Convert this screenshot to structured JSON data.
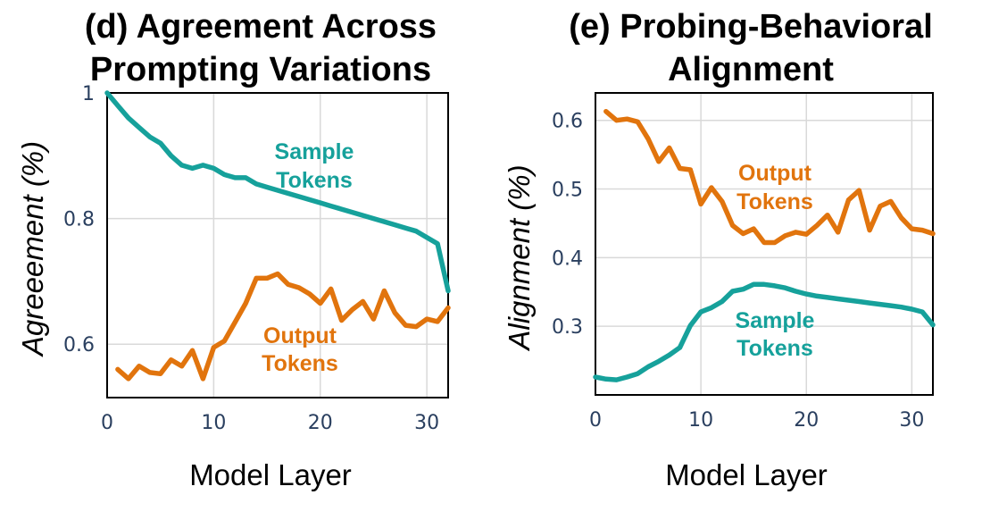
{
  "chart_data": [
    {
      "type": "line",
      "title_lines": [
        "(d) Agreement Across",
        "Prompting Variations"
      ],
      "xlabel": "Model Layer",
      "ylabel": "Agreeement (%)",
      "xlim": [
        0,
        32
      ],
      "ylim": [
        0.515,
        1.0
      ],
      "xticks": [
        0,
        10,
        20,
        30
      ],
      "yticks": [
        0.6,
        0.8,
        1.0
      ],
      "ytick_labels": [
        "0.6",
        "0.8",
        "1"
      ],
      "grid": true,
      "series": [
        {
          "name_lines": [
            "Sample",
            "Tokens"
          ],
          "color": "#16a19b",
          "x": [
            0,
            1,
            2,
            3,
            4,
            5,
            6,
            7,
            8,
            9,
            10,
            11,
            12,
            13,
            14,
            15,
            16,
            17,
            18,
            19,
            20,
            21,
            22,
            23,
            24,
            25,
            26,
            27,
            28,
            29,
            30,
            31,
            32
          ],
          "y": [
            1.0,
            0.98,
            0.96,
            0.945,
            0.93,
            0.92,
            0.9,
            0.885,
            0.88,
            0.885,
            0.88,
            0.87,
            0.865,
            0.865,
            0.855,
            0.85,
            0.845,
            0.84,
            0.835,
            0.83,
            0.825,
            0.82,
            0.815,
            0.81,
            0.805,
            0.8,
            0.795,
            0.79,
            0.785,
            0.78,
            0.77,
            0.76,
            0.685
          ]
        },
        {
          "name_lines": [
            "Output",
            "Tokens"
          ],
          "color": "#e1740d",
          "x": [
            1,
            2,
            3,
            4,
            5,
            6,
            7,
            8,
            9,
            10,
            11,
            12,
            13,
            14,
            15,
            16,
            17,
            18,
            19,
            20,
            21,
            22,
            23,
            24,
            25,
            26,
            27,
            28,
            29,
            30,
            31,
            32
          ],
          "y": [
            0.56,
            0.545,
            0.565,
            0.555,
            0.553,
            0.575,
            0.565,
            0.59,
            0.545,
            0.595,
            0.605,
            0.635,
            0.665,
            0.705,
            0.705,
            0.712,
            0.695,
            0.69,
            0.68,
            0.665,
            0.688,
            0.638,
            0.655,
            0.668,
            0.64,
            0.685,
            0.65,
            0.63,
            0.628,
            0.64,
            0.636,
            0.658
          ]
        }
      ]
    },
    {
      "type": "line",
      "title_lines": [
        "(e) Probing-Behavioral",
        "Alignment"
      ],
      "xlabel": "Model Layer",
      "ylabel": "Alignment (%)",
      "xlim": [
        0,
        32
      ],
      "ylim": [
        0.2,
        0.64
      ],
      "xticks": [
        0,
        10,
        20,
        30
      ],
      "yticks": [
        0.3,
        0.4,
        0.5,
        0.6
      ],
      "ytick_labels": [
        "0.3",
        "0.4",
        "0.5",
        "0.6"
      ],
      "grid": true,
      "series": [
        {
          "name_lines": [
            "Output",
            "Tokens"
          ],
          "color": "#e1740d",
          "x": [
            1,
            2,
            3,
            4,
            5,
            6,
            7,
            8,
            9,
            10,
            11,
            12,
            13,
            14,
            15,
            16,
            17,
            18,
            19,
            20,
            21,
            22,
            23,
            24,
            25,
            26,
            27,
            28,
            29,
            30,
            31,
            32
          ],
          "y": [
            0.613,
            0.6,
            0.602,
            0.598,
            0.573,
            0.54,
            0.56,
            0.53,
            0.528,
            0.478,
            0.502,
            0.482,
            0.447,
            0.435,
            0.442,
            0.422,
            0.422,
            0.432,
            0.437,
            0.434,
            0.447,
            0.462,
            0.437,
            0.484,
            0.498,
            0.44,
            0.475,
            0.482,
            0.458,
            0.442,
            0.44,
            0.435
          ]
        },
        {
          "name_lines": [
            "Sample",
            "Tokens"
          ],
          "color": "#16a19b",
          "x": [
            0,
            1,
            2,
            3,
            4,
            5,
            6,
            7,
            8,
            9,
            10,
            11,
            12,
            13,
            14,
            15,
            16,
            17,
            18,
            19,
            20,
            21,
            22,
            23,
            24,
            25,
            26,
            27,
            28,
            29,
            30,
            31,
            32
          ],
          "y": [
            0.226,
            0.223,
            0.222,
            0.226,
            0.231,
            0.241,
            0.249,
            0.258,
            0.269,
            0.301,
            0.321,
            0.327,
            0.336,
            0.351,
            0.354,
            0.361,
            0.361,
            0.359,
            0.356,
            0.351,
            0.347,
            0.344,
            0.342,
            0.34,
            0.338,
            0.336,
            0.334,
            0.332,
            0.33,
            0.328,
            0.325,
            0.321,
            0.302
          ]
        }
      ]
    }
  ]
}
